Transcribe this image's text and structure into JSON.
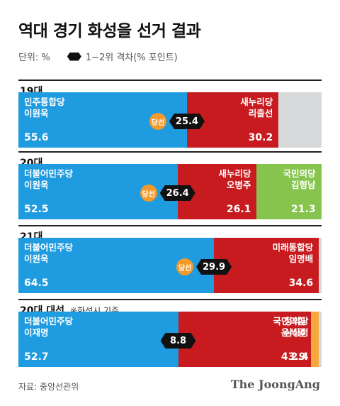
{
  "title": "역대 경기 화성을 선거 결과",
  "legend": {
    "unit": "단위: %",
    "gap_label": "1~2위 격차(% 포인트)"
  },
  "elected_label": "당선",
  "source": "자료: 중앙선관위",
  "brand": "The JoongAng",
  "colors": {
    "blue": "#1f9be0",
    "red": "#c71b1f",
    "green": "#86c44e",
    "orange": "#f6a93a",
    "gray": "#d8d9db",
    "elected": "#f39a2b"
  },
  "chart_data": {
    "type": "bar",
    "orientation": "horizontal-stacked",
    "xlim": [
      0,
      100
    ],
    "rows": [
      {
        "label": "19대",
        "note": "",
        "gap": "25.4",
        "elected_index": 0,
        "segments": [
          {
            "party": "민주통합당",
            "candidate": "이원욱",
            "value": 55.6,
            "value_label": "55.6",
            "color": "blue"
          },
          {
            "party": "새누리당",
            "candidate": "리출선",
            "value": 30.2,
            "value_label": "30.2",
            "color": "red"
          }
        ]
      },
      {
        "label": "20대",
        "note": "",
        "gap": "26.4",
        "elected_index": 0,
        "segments": [
          {
            "party": "더불어민주당",
            "candidate": "이원욱",
            "value": 52.5,
            "value_label": "52.5",
            "color": "blue"
          },
          {
            "party": "새누리당",
            "candidate": "오병주",
            "value": 26.1,
            "value_label": "26.1",
            "color": "red"
          },
          {
            "party": "국민의당",
            "candidate": "김형남",
            "value": 21.3,
            "value_label": "21.3",
            "color": "green"
          }
        ]
      },
      {
        "label": "21대",
        "note": "",
        "gap": "29.9",
        "elected_index": 0,
        "segments": [
          {
            "party": "더불어민주당",
            "candidate": "이원욱",
            "value": 64.5,
            "value_label": "64.5",
            "color": "blue"
          },
          {
            "party": "미래통합당",
            "candidate": "임명배",
            "value": 34.6,
            "value_label": "34.6",
            "color": "red"
          }
        ]
      },
      {
        "label": "20대 대선",
        "note": "※화성시 기준",
        "gap": "8.8",
        "elected_index": null,
        "segments": [
          {
            "party": "더불어민주당",
            "candidate": "이재명",
            "value": 52.7,
            "value_label": "52.7",
            "color": "blue"
          },
          {
            "party": "국민의힘",
            "candidate": "윤석열",
            "value": 43.9,
            "value_label": "43.9",
            "color": "red"
          },
          {
            "party": "정의당",
            "candidate": "심상정",
            "value": 2.4,
            "value_label": "2.4",
            "color": "orange"
          }
        ]
      }
    ]
  }
}
